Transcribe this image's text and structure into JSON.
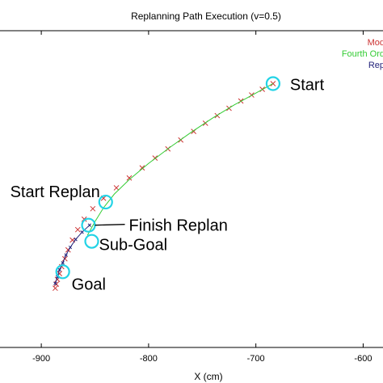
{
  "chart_data": {
    "type": "line",
    "title": "Replanning Path Execution (v=0.5)",
    "xlabel": "X (cm)",
    "ylabel": "",
    "xlim": [
      -940,
      -580
    ],
    "ylim": [
      0,
      100
    ],
    "xticks": [
      -900,
      -800,
      -700,
      -600
    ],
    "xtick_labels": [
      "-900",
      "-800",
      "-700",
      "-600"
    ],
    "grid": false,
    "legend": {
      "placement": "top-right",
      "entries": [
        {
          "label": "Mod",
          "color": "#cc3333"
        },
        {
          "label": "Fourth Ord",
          "color": "#33cc33"
        },
        {
          "label": "Rep",
          "color": "#22227a"
        }
      ]
    },
    "series": [
      {
        "name": "Mod",
        "style": "x-markers",
        "color": "#cc3333",
        "x": [
          -684,
          -694,
          -704,
          -714,
          -725,
          -736,
          -747,
          -758,
          -770,
          -782,
          -794,
          -806,
          -818,
          -830,
          -842,
          -852,
          -860,
          -866,
          -871,
          -875,
          -878,
          -881,
          -883,
          -885,
          -886,
          -887
        ],
        "y": [
          83.3,
          81.5,
          79.7,
          77.8,
          75.5,
          73.2,
          70.8,
          68.2,
          65.5,
          62.7,
          59.8,
          56.7,
          53.5,
          50.4,
          47.1,
          43.8,
          40.5,
          37.2,
          33.9,
          30.8,
          28.0,
          25.5,
          23.3,
          21.5,
          20.0,
          18.7
        ]
      },
      {
        "name": "Fourth Ord",
        "style": "line",
        "color": "#33cc33",
        "x": [
          -684,
          -700,
          -720,
          -740,
          -760,
          -780,
          -800,
          -818,
          -832,
          -842,
          -850,
          -857
        ],
        "y": [
          83.3,
          80.3,
          76.6,
          72.5,
          68.0,
          63.2,
          58.1,
          53.0,
          48.4,
          44.1,
          39.7,
          35.4
        ]
      },
      {
        "name": "Rep",
        "style": "line-markers",
        "color": "#22227a",
        "x": [
          -855,
          -862,
          -868,
          -873,
          -877,
          -880,
          -883,
          -885,
          -887
        ],
        "y": [
          38.6,
          36.4,
          34.1,
          31.6,
          29.2,
          26.7,
          24.5,
          22.3,
          20.2
        ]
      }
    ],
    "annotations": [
      {
        "text": "Start",
        "x": -684,
        "y": 83.3
      },
      {
        "text": "Start Replan",
        "x": -840,
        "y": 45.9
      },
      {
        "text": "Finish Replan",
        "x": -856,
        "y": 38.6
      },
      {
        "text": "Sub-Goal",
        "x": -853,
        "y": 33.5
      },
      {
        "text": "Goal",
        "x": -880,
        "y": 23.9
      }
    ]
  }
}
